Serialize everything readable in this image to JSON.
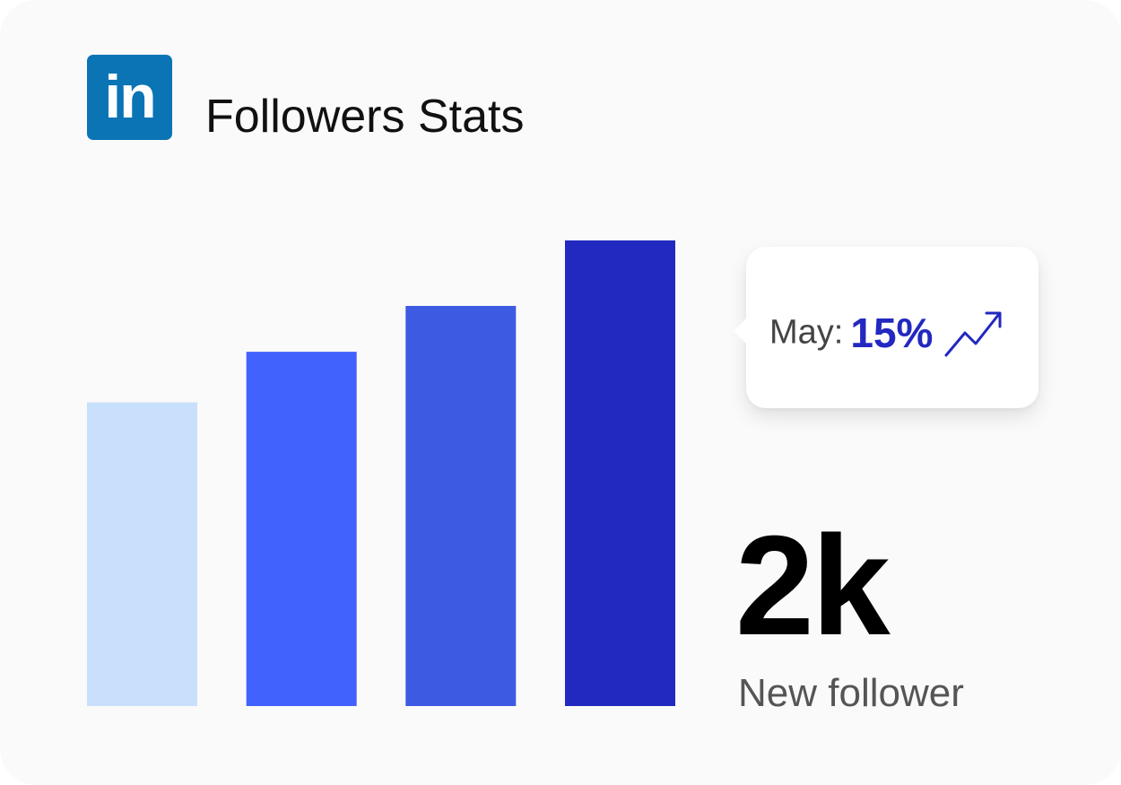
{
  "header": {
    "logo_text": "in",
    "title": "Followers Stats"
  },
  "colors": {
    "brand": "#0a74b5",
    "accent": "#2328c0"
  },
  "chart_data": {
    "type": "bar",
    "values": [
      4.5,
      5.25,
      5.93,
      6.9
    ],
    "colors": [
      "#c8e0fb",
      "#4262fd",
      "#3d5ae3",
      "#2229c0"
    ],
    "ylim": [
      0,
      6.9
    ],
    "grid": false
  },
  "tooltip": {
    "label": "May:",
    "value": "15%",
    "icon": "trend-up-icon"
  },
  "summary": {
    "value": "2k",
    "caption": "New follower"
  }
}
